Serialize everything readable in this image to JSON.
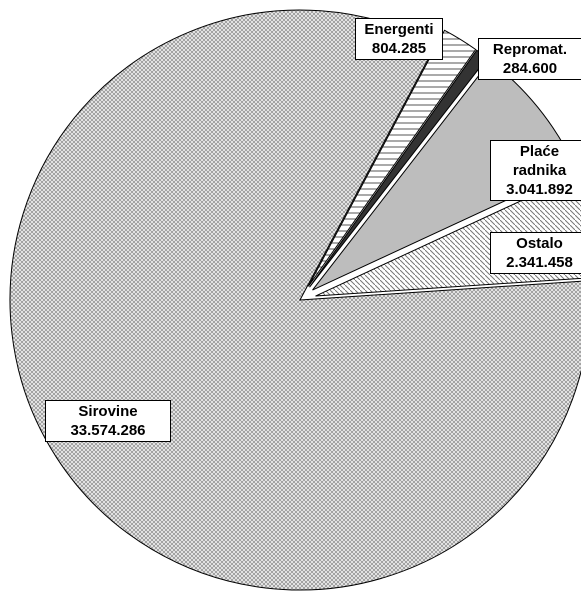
{
  "chart_data": {
    "type": "pie",
    "categories": [
      "Energenti",
      "Repromat.",
      "Plaće radnika",
      "Ostalo",
      "Sirovine"
    ],
    "values": [
      804285,
      284600,
      3041892,
      2341458,
      33574286
    ],
    "value_labels": [
      "804.285",
      "284.600",
      "3.041.892",
      "2.341.458",
      "33.574.286"
    ],
    "colors": [
      "#555555",
      "#333333",
      "#bdbdbd",
      "#777777",
      "#8a8a8a"
    ]
  }
}
